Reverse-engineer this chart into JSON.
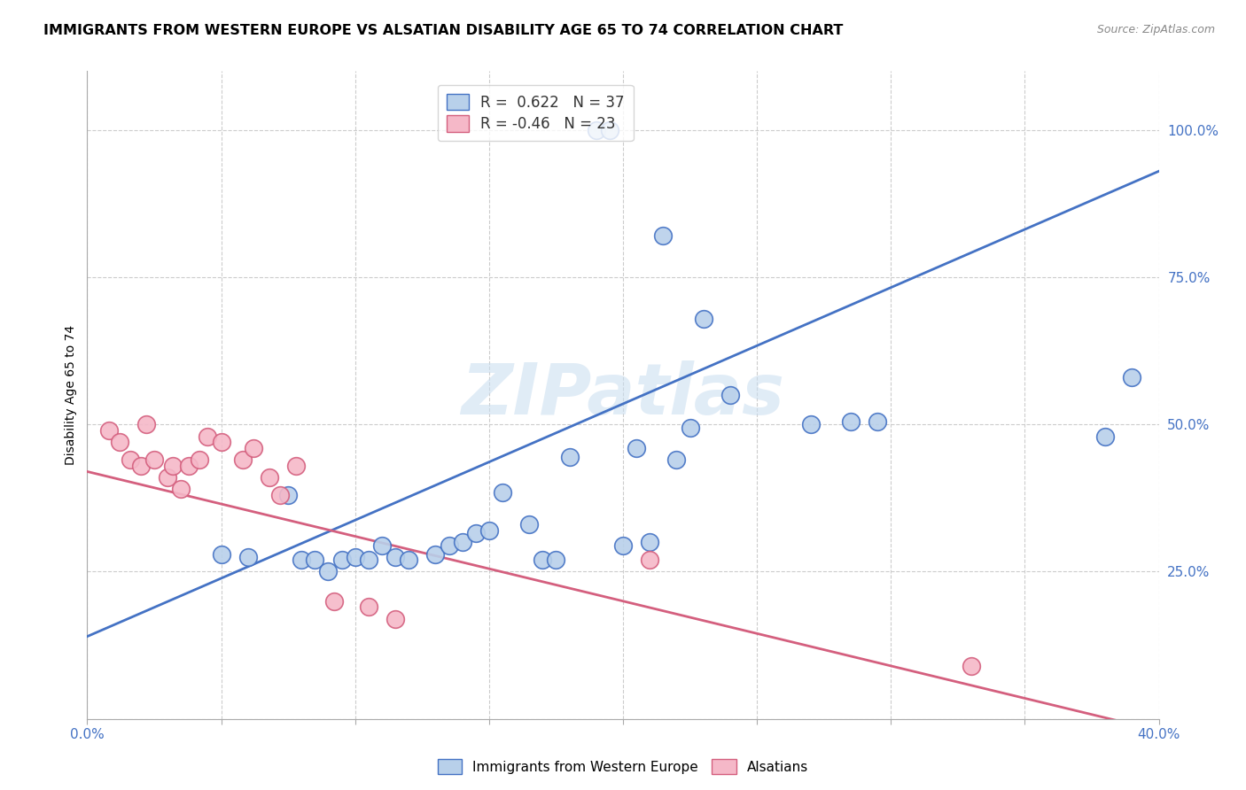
{
  "title": "IMMIGRANTS FROM WESTERN EUROPE VS ALSATIAN DISABILITY AGE 65 TO 74 CORRELATION CHART",
  "source": "Source: ZipAtlas.com",
  "ylabel": "Disability Age 65 to 74",
  "xlim": [
    0.0,
    0.4
  ],
  "ylim": [
    0.0,
    1.1
  ],
  "x_tick_positions": [
    0.0,
    0.05,
    0.1,
    0.15,
    0.2,
    0.25,
    0.3,
    0.35,
    0.4
  ],
  "x_tick_labels": [
    "0.0%",
    "",
    "",
    "",
    "",
    "",
    "",
    "",
    "40.0%"
  ],
  "y_ticks_right": [
    1.0,
    0.75,
    0.5,
    0.25,
    0.0
  ],
  "y_tick_labels_right": [
    "100.0%",
    "75.0%",
    "50.0%",
    "25.0%",
    ""
  ],
  "blue_R": 0.622,
  "blue_N": 37,
  "pink_R": -0.46,
  "pink_N": 23,
  "blue_color": "#b8d0ea",
  "pink_color": "#f5b8c8",
  "blue_line_color": "#4472c4",
  "pink_line_color": "#d45f7e",
  "watermark": "ZIPatlas",
  "legend_blue_label": "Immigrants from Western Europe",
  "legend_pink_label": "Alsatians",
  "blue_scatter_x": [
    0.19,
    0.195,
    0.215,
    0.23,
    0.24,
    0.27,
    0.285,
    0.295,
    0.38,
    0.39,
    0.05,
    0.06,
    0.075,
    0.08,
    0.085,
    0.09,
    0.095,
    0.1,
    0.105,
    0.11,
    0.115,
    0.12,
    0.13,
    0.135,
    0.14,
    0.145,
    0.15,
    0.155,
    0.165,
    0.17,
    0.175,
    0.18,
    0.2,
    0.205,
    0.21,
    0.22,
    0.225
  ],
  "blue_scatter_y": [
    1.0,
    1.0,
    0.82,
    0.68,
    0.55,
    0.5,
    0.505,
    0.505,
    0.48,
    0.58,
    0.28,
    0.275,
    0.38,
    0.27,
    0.27,
    0.25,
    0.27,
    0.275,
    0.27,
    0.295,
    0.275,
    0.27,
    0.28,
    0.295,
    0.3,
    0.315,
    0.32,
    0.385,
    0.33,
    0.27,
    0.27,
    0.445,
    0.295,
    0.46,
    0.3,
    0.44,
    0.495
  ],
  "pink_scatter_x": [
    0.008,
    0.012,
    0.016,
    0.02,
    0.022,
    0.025,
    0.03,
    0.032,
    0.035,
    0.038,
    0.042,
    0.045,
    0.05,
    0.058,
    0.062,
    0.068,
    0.072,
    0.078,
    0.092,
    0.105,
    0.115,
    0.21,
    0.33
  ],
  "pink_scatter_y": [
    0.49,
    0.47,
    0.44,
    0.43,
    0.5,
    0.44,
    0.41,
    0.43,
    0.39,
    0.43,
    0.44,
    0.48,
    0.47,
    0.44,
    0.46,
    0.41,
    0.38,
    0.43,
    0.2,
    0.19,
    0.17,
    0.27,
    0.09
  ],
  "blue_line_x0": 0.0,
  "blue_line_y0": 0.14,
  "blue_line_x1": 0.4,
  "blue_line_y1": 0.93,
  "pink_line_x0": 0.0,
  "pink_line_y0": 0.42,
  "pink_line_x1": 0.4,
  "pink_line_y1": -0.02,
  "grid_color": "#cccccc",
  "grid_linestyle": "--"
}
